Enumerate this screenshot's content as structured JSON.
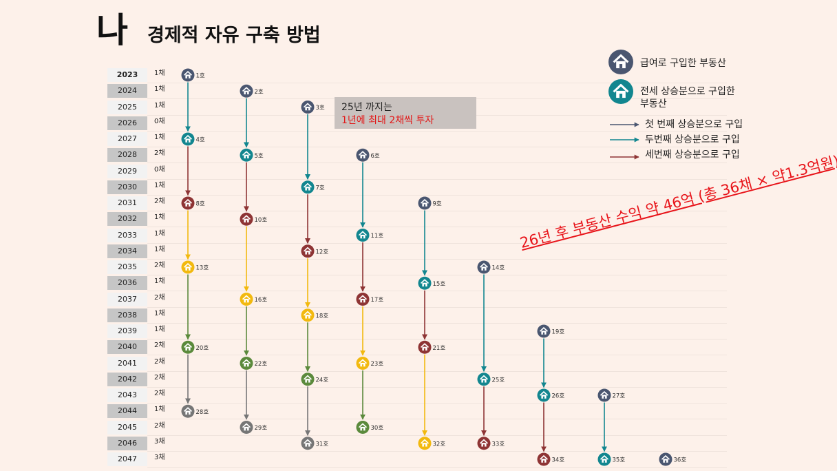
{
  "title": {
    "main": "나",
    "sub": "경제적 자유 구축 방법"
  },
  "years": [
    {
      "year": "2023",
      "count": "1채"
    },
    {
      "year": "2024",
      "count": "1채"
    },
    {
      "year": "2025",
      "count": "1채"
    },
    {
      "year": "2026",
      "count": "0채"
    },
    {
      "year": "2027",
      "count": "1채"
    },
    {
      "year": "2028",
      "count": "2채"
    },
    {
      "year": "2029",
      "count": "0채"
    },
    {
      "year": "2030",
      "count": "1채"
    },
    {
      "year": "2031",
      "count": "2채"
    },
    {
      "year": "2032",
      "count": "1채"
    },
    {
      "year": "2033",
      "count": "1채"
    },
    {
      "year": "2034",
      "count": "1채"
    },
    {
      "year": "2035",
      "count": "2채"
    },
    {
      "year": "2036",
      "count": "1채"
    },
    {
      "year": "2037",
      "count": "2채"
    },
    {
      "year": "2038",
      "count": "1채"
    },
    {
      "year": "2039",
      "count": "1채"
    },
    {
      "year": "2040",
      "count": "2채"
    },
    {
      "year": "2041",
      "count": "2채"
    },
    {
      "year": "2042",
      "count": "2채"
    },
    {
      "year": "2043",
      "count": "2채"
    },
    {
      "year": "2044",
      "count": "1채"
    },
    {
      "year": "2045",
      "count": "2채"
    },
    {
      "year": "2046",
      "count": "3채"
    },
    {
      "year": "2047",
      "count": "3채"
    }
  ],
  "colors": {
    "salary": "#4a5670",
    "first": "#12868f",
    "second": "#8e3434",
    "third": "#f2b90f",
    "fourth": "#5b8a3c",
    "fifth": "#767676",
    "note_red": "#e21b1b",
    "profit_red": "#e8141a"
  },
  "houses": [
    {
      "label": "1호",
      "year": "2023",
      "col": 0,
      "color": "salary"
    },
    {
      "label": "2호",
      "year": "2024",
      "col": 1,
      "color": "salary"
    },
    {
      "label": "3호",
      "year": "2025",
      "col": 2,
      "color": "salary"
    },
    {
      "label": "4호",
      "year": "2027",
      "col": 0,
      "color": "first"
    },
    {
      "label": "5호",
      "year": "2028",
      "col": 1,
      "color": "first"
    },
    {
      "label": "6호",
      "year": "2028",
      "col": 3,
      "color": "salary"
    },
    {
      "label": "7호",
      "year": "2030",
      "col": 2,
      "color": "first"
    },
    {
      "label": "8호",
      "year": "2031",
      "col": 0,
      "color": "second"
    },
    {
      "label": "9호",
      "year": "2031",
      "col": 4,
      "color": "salary"
    },
    {
      "label": "10호",
      "year": "2032",
      "col": 1,
      "color": "second"
    },
    {
      "label": "11호",
      "year": "2033",
      "col": 3,
      "color": "first"
    },
    {
      "label": "12호",
      "year": "2034",
      "col": 2,
      "color": "second"
    },
    {
      "label": "13호",
      "year": "2035",
      "col": 0,
      "color": "third"
    },
    {
      "label": "14호",
      "year": "2035",
      "col": 5,
      "color": "salary"
    },
    {
      "label": "15호",
      "year": "2036",
      "col": 4,
      "color": "first"
    },
    {
      "label": "16호",
      "year": "2037",
      "col": 1,
      "color": "third"
    },
    {
      "label": "17호",
      "year": "2037",
      "col": 3,
      "color": "second"
    },
    {
      "label": "18호",
      "year": "2038",
      "col": 2,
      "color": "third"
    },
    {
      "label": "19호",
      "year": "2039",
      "col": 6,
      "color": "salary"
    },
    {
      "label": "20호",
      "year": "2040",
      "col": 0,
      "color": "fourth"
    },
    {
      "label": "21호",
      "year": "2040",
      "col": 4,
      "color": "second"
    },
    {
      "label": "22호",
      "year": "2041",
      "col": 1,
      "color": "fourth"
    },
    {
      "label": "23호",
      "year": "2041",
      "col": 3,
      "color": "third"
    },
    {
      "label": "24호",
      "year": "2042",
      "col": 2,
      "color": "fourth"
    },
    {
      "label": "25호",
      "year": "2042",
      "col": 5,
      "color": "first"
    },
    {
      "label": "26호",
      "year": "2043",
      "col": 6,
      "color": "first"
    },
    {
      "label": "27호",
      "year": "2043",
      "col": 7,
      "color": "salary"
    },
    {
      "label": "28호",
      "year": "2044",
      "col": 0,
      "color": "fifth"
    },
    {
      "label": "29호",
      "year": "2045",
      "col": 1,
      "color": "fifth"
    },
    {
      "label": "30호",
      "year": "2045",
      "col": 3,
      "color": "fourth"
    },
    {
      "label": "31호",
      "year": "2046",
      "col": 2,
      "color": "fifth"
    },
    {
      "label": "32호",
      "year": "2046",
      "col": 4,
      "color": "third"
    },
    {
      "label": "33호",
      "year": "2046",
      "col": 5,
      "color": "second"
    },
    {
      "label": "34호",
      "year": "2047",
      "col": 6,
      "color": "second"
    },
    {
      "label": "35호",
      "year": "2047",
      "col": 7,
      "color": "first"
    },
    {
      "label": "36호",
      "year": "2047",
      "col": 8,
      "color": "salary"
    }
  ],
  "arrows": [
    {
      "from": "1호",
      "to": "4호",
      "color": "first"
    },
    {
      "from": "4호",
      "to": "8호",
      "color": "second"
    },
    {
      "from": "8호",
      "to": "13호",
      "color": "third"
    },
    {
      "from": "13호",
      "to": "20호",
      "color": "fourth"
    },
    {
      "from": "20호",
      "to": "28호",
      "color": "fifth"
    },
    {
      "from": "2호",
      "to": "5호",
      "color": "first"
    },
    {
      "from": "5호",
      "to": "10호",
      "color": "second"
    },
    {
      "from": "10호",
      "to": "16호",
      "color": "third"
    },
    {
      "from": "16호",
      "to": "22호",
      "color": "fourth"
    },
    {
      "from": "22호",
      "to": "29호",
      "color": "fifth"
    },
    {
      "from": "3호",
      "to": "7호",
      "color": "first"
    },
    {
      "from": "7호",
      "to": "12호",
      "color": "second"
    },
    {
      "from": "12호",
      "to": "18호",
      "color": "third"
    },
    {
      "from": "18호",
      "to": "24호",
      "color": "fourth"
    },
    {
      "from": "24호",
      "to": "31호",
      "color": "fifth"
    },
    {
      "from": "6호",
      "to": "11호",
      "color": "first"
    },
    {
      "from": "11호",
      "to": "17호",
      "color": "second"
    },
    {
      "from": "17호",
      "to": "23호",
      "color": "third"
    },
    {
      "from": "23호",
      "to": "30호",
      "color": "fourth"
    },
    {
      "from": "9호",
      "to": "15호",
      "color": "first"
    },
    {
      "from": "15호",
      "to": "21호",
      "color": "second"
    },
    {
      "from": "21호",
      "to": "32호",
      "color": "third"
    },
    {
      "from": "14호",
      "to": "25호",
      "color": "first"
    },
    {
      "from": "25호",
      "to": "33호",
      "color": "second"
    },
    {
      "from": "19호",
      "to": "26호",
      "color": "first"
    },
    {
      "from": "26호",
      "to": "34호",
      "color": "second"
    },
    {
      "from": "27호",
      "to": "35호",
      "color": "first"
    }
  ],
  "note": {
    "line1": "25년 까지는",
    "line2": "1년에 최대 2채씩 투자"
  },
  "legend": {
    "salary": "급여로 구입한 부동산",
    "jeonse_line1": "전세 상승분으로 구입한",
    "jeonse_line2": "부동산",
    "arrow1": "첫 번째 상승분으로 구입",
    "arrow2": "두번째 상승분으로 구입",
    "arrow3": "세번째 상승분으로 구입"
  },
  "profit_text": "26년  후 부동산 수익 약 46억 (총 36채  × 약1.3억원)"
}
